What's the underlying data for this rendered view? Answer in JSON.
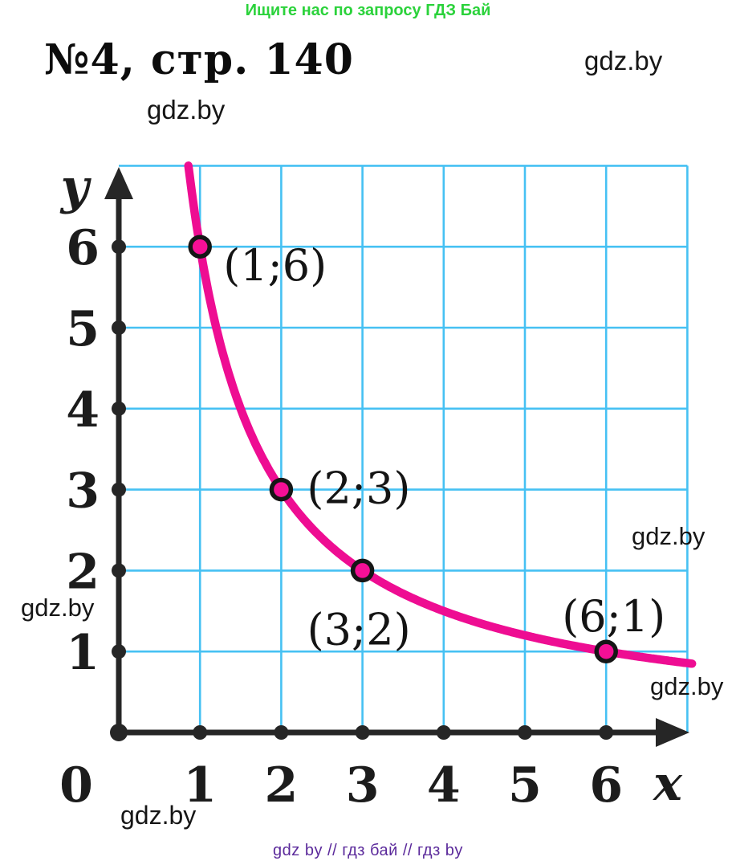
{
  "page": {
    "header_link": "Ищите нас по запросу ГДЗ Бай",
    "title": "№4, стр. 140",
    "watermark": "gdz.by",
    "footer": "gdz by  //  гдз бай  //  гдз by"
  },
  "colors": {
    "header_green": "#2bd23b",
    "footer_purple": "#5b2a9b",
    "grid": "#46c1f3",
    "curve": "#ee0d92",
    "point": "#f50f96",
    "point_stroke": "#161616",
    "axis": "#262626"
  },
  "chart_data": {
    "type": "line",
    "title": "",
    "function": "y = 6/x",
    "k": 6,
    "xlim": [
      0,
      7
    ],
    "ylim": [
      0,
      7
    ],
    "grid": true,
    "origin_label": "0",
    "x_axis_label": "x",
    "y_axis_label": "y",
    "x_ticks": [
      "1",
      "2",
      "3",
      "4",
      "5",
      "6"
    ],
    "y_ticks": [
      "1",
      "2",
      "3",
      "4",
      "5",
      "6"
    ],
    "points": [
      {
        "x": 1,
        "y": 6,
        "label": "(1;6)"
      },
      {
        "x": 2,
        "y": 3,
        "label": "(2;3)"
      },
      {
        "x": 3,
        "y": 2,
        "label": "(3;2)"
      },
      {
        "x": 6,
        "y": 1,
        "label": "(6;1)"
      }
    ]
  }
}
